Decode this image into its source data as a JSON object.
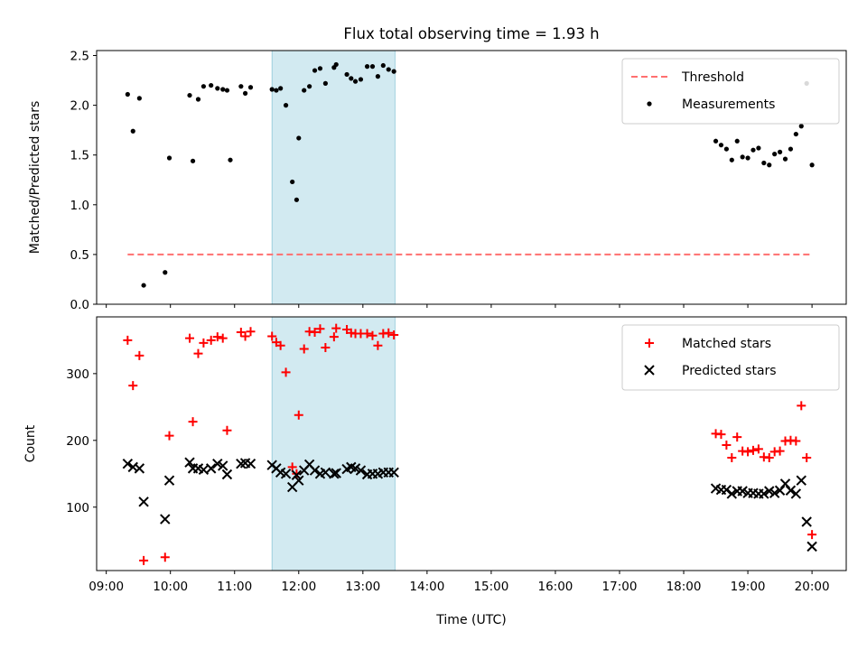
{
  "title": "Flux total observing time = 1.93 h",
  "chart_data": [
    {
      "type": "scatter",
      "panel": "top",
      "title": "Flux total observing time = 1.93 h",
      "ylabel": "Matched/Predicted stars",
      "xlabel": "",
      "xlim": [
        "08:51",
        "20:32"
      ],
      "ylim": [
        0,
        2.55
      ],
      "yticks": [
        "0.0",
        "0.5",
        "1.0",
        "1.5",
        "2.0",
        "2.5"
      ],
      "grid": false,
      "legend_position": "top-right",
      "shaded_span": {
        "start": "11:35",
        "end": "13:30",
        "color": "#add8e6"
      },
      "threshold": {
        "name": "Threshold",
        "value": 0.5,
        "x_start": "09:20",
        "x_end": "20:00",
        "color": "#ff6f6f",
        "style": "dashed"
      },
      "series": [
        {
          "name": "Measurements",
          "color": "#000000",
          "marker": "dot",
          "points": [
            [
              "09:20",
              2.11
            ],
            [
              "09:25",
              1.74
            ],
            [
              "09:31",
              2.07
            ],
            [
              "09:35",
              0.19
            ],
            [
              "09:55",
              0.32
            ],
            [
              "09:59",
              1.47
            ],
            [
              "10:18",
              2.1
            ],
            [
              "10:21",
              1.44
            ],
            [
              "10:26",
              2.06
            ],
            [
              "10:31",
              2.19
            ],
            [
              "10:38",
              2.2
            ],
            [
              "10:44",
              2.17
            ],
            [
              "10:49",
              2.16
            ],
            [
              "10:53",
              2.15
            ],
            [
              "10:56",
              1.45
            ],
            [
              "11:06",
              2.19
            ],
            [
              "11:10",
              2.12
            ],
            [
              "11:15",
              2.18
            ],
            [
              "11:35",
              2.16
            ],
            [
              "11:39",
              2.15
            ],
            [
              "11:43",
              2.17
            ],
            [
              "11:48",
              2.0
            ],
            [
              "11:54",
              1.23
            ],
            [
              "11:58",
              1.05
            ],
            [
              "12:00",
              1.67
            ],
            [
              "12:05",
              2.15
            ],
            [
              "12:10",
              2.19
            ],
            [
              "12:15",
              2.35
            ],
            [
              "12:20",
              2.37
            ],
            [
              "12:25",
              2.22
            ],
            [
              "12:33",
              2.38
            ],
            [
              "12:35",
              2.41
            ],
            [
              "12:45",
              2.31
            ],
            [
              "12:49",
              2.27
            ],
            [
              "12:53",
              2.24
            ],
            [
              "12:58",
              2.26
            ],
            [
              "13:04",
              2.39
            ],
            [
              "13:09",
              2.39
            ],
            [
              "13:14",
              2.29
            ],
            [
              "13:19",
              2.4
            ],
            [
              "13:24",
              2.36
            ],
            [
              "13:29",
              2.34
            ],
            [
              "18:30",
              1.64
            ],
            [
              "18:35",
              1.6
            ],
            [
              "18:40",
              1.56
            ],
            [
              "18:45",
              1.45
            ],
            [
              "18:50",
              1.64
            ],
            [
              "18:55",
              1.48
            ],
            [
              "19:00",
              1.47
            ],
            [
              "19:05",
              1.55
            ],
            [
              "19:10",
              1.57
            ],
            [
              "19:15",
              1.42
            ],
            [
              "19:20",
              1.4
            ],
            [
              "19:25",
              1.51
            ],
            [
              "19:30",
              1.53
            ],
            [
              "19:35",
              1.46
            ],
            [
              "19:40",
              1.56
            ],
            [
              "19:45",
              1.71
            ],
            [
              "19:50",
              1.79
            ],
            [
              "19:55",
              2.22
            ],
            [
              "20:00",
              1.4
            ]
          ]
        }
      ]
    },
    {
      "type": "scatter",
      "panel": "bottom",
      "ylabel": "Count",
      "xlabel": "Time (UTC)",
      "xlim": [
        "08:51",
        "20:32"
      ],
      "ylim": [
        5,
        385
      ],
      "yticks": [
        "100",
        "200",
        "300"
      ],
      "xticks": [
        "09:00",
        "10:00",
        "11:00",
        "12:00",
        "13:00",
        "14:00",
        "15:00",
        "16:00",
        "17:00",
        "18:00",
        "19:00",
        "20:00"
      ],
      "grid": false,
      "legend_position": "top-right",
      "shaded_span": {
        "start": "11:35",
        "end": "13:30",
        "color": "#add8e6"
      },
      "series": [
        {
          "name": "Matched stars",
          "color": "#ff0000",
          "marker": "plus",
          "points": [
            [
              "09:20",
              350
            ],
            [
              "09:25",
              282
            ],
            [
              "09:31",
              327
            ],
            [
              "09:35",
              20
            ],
            [
              "09:55",
              25
            ],
            [
              "09:59",
              207
            ],
            [
              "10:18",
              353
            ],
            [
              "10:21",
              228
            ],
            [
              "10:26",
              330
            ],
            [
              "10:31",
              346
            ],
            [
              "10:38",
              350
            ],
            [
              "10:44",
              355
            ],
            [
              "10:49",
              353
            ],
            [
              "10:53",
              215
            ],
            [
              "11:06",
              362
            ],
            [
              "11:10",
              356
            ],
            [
              "11:15",
              363
            ],
            [
              "11:35",
              356
            ],
            [
              "11:39",
              347
            ],
            [
              "11:43",
              342
            ],
            [
              "11:48",
              302
            ],
            [
              "11:54",
              160
            ],
            [
              "11:58",
              150
            ],
            [
              "12:00",
              238
            ],
            [
              "12:05",
              337
            ],
            [
              "12:10",
              363
            ],
            [
              "12:15",
              362
            ],
            [
              "12:20",
              367
            ],
            [
              "12:25",
              339
            ],
            [
              "12:33",
              355
            ],
            [
              "12:35",
              368
            ],
            [
              "12:45",
              366
            ],
            [
              "12:49",
              361
            ],
            [
              "12:53",
              360
            ],
            [
              "12:58",
              360
            ],
            [
              "13:04",
              360
            ],
            [
              "13:09",
              357
            ],
            [
              "13:14",
              342
            ],
            [
              "13:19",
              360
            ],
            [
              "13:24",
              361
            ],
            [
              "13:29",
              358
            ],
            [
              "18:30",
              210
            ],
            [
              "18:35",
              209
            ],
            [
              "18:40",
              193
            ],
            [
              "18:45",
              174
            ],
            [
              "18:50",
              205
            ],
            [
              "18:55",
              184
            ],
            [
              "19:00",
              183
            ],
            [
              "19:05",
              185
            ],
            [
              "19:10",
              187
            ],
            [
              "19:15",
              175
            ],
            [
              "19:20",
              174
            ],
            [
              "19:25",
              183
            ],
            [
              "19:30",
              184
            ],
            [
              "19:35",
              199
            ],
            [
              "19:40",
              200
            ],
            [
              "19:45",
              199
            ],
            [
              "19:50",
              252
            ],
            [
              "19:55",
              174
            ],
            [
              "20:00",
              59
            ]
          ]
        },
        {
          "name": "Predicted stars",
          "color": "#000000",
          "marker": "cross",
          "points": [
            [
              "09:20",
              165
            ],
            [
              "09:25",
              160
            ],
            [
              "09:31",
              158
            ],
            [
              "09:35",
              108
            ],
            [
              "09:55",
              82
            ],
            [
              "09:59",
              140
            ],
            [
              "10:18",
              167
            ],
            [
              "10:21",
              158
            ],
            [
              "10:26",
              158
            ],
            [
              "10:31",
              156
            ],
            [
              "10:38",
              158
            ],
            [
              "10:44",
              165
            ],
            [
              "10:49",
              162
            ],
            [
              "10:53",
              149
            ],
            [
              "11:06",
              165
            ],
            [
              "11:10",
              166
            ],
            [
              "11:15",
              165
            ],
            [
              "11:35",
              163
            ],
            [
              "11:39",
              158
            ],
            [
              "11:43",
              152
            ],
            [
              "11:48",
              150
            ],
            [
              "11:54",
              130
            ],
            [
              "11:58",
              148
            ],
            [
              "12:00",
              140
            ],
            [
              "12:05",
              155
            ],
            [
              "12:10",
              164
            ],
            [
              "12:15",
              155
            ],
            [
              "12:20",
              150
            ],
            [
              "12:25",
              152
            ],
            [
              "12:33",
              150
            ],
            [
              "12:35",
              151
            ],
            [
              "12:45",
              157
            ],
            [
              "12:49",
              160
            ],
            [
              "12:53",
              158
            ],
            [
              "12:58",
              155
            ],
            [
              "13:04",
              149
            ],
            [
              "13:09",
              150
            ],
            [
              "13:14",
              150
            ],
            [
              "13:19",
              152
            ],
            [
              "13:24",
              152
            ],
            [
              "13:29",
              152
            ],
            [
              "18:30",
              128
            ],
            [
              "18:35",
              126
            ],
            [
              "18:40",
              126
            ],
            [
              "18:45",
              120
            ],
            [
              "18:50",
              124
            ],
            [
              "18:55",
              124
            ],
            [
              "19:00",
              121
            ],
            [
              "19:05",
              121
            ],
            [
              "19:10",
              120
            ],
            [
              "19:15",
              120
            ],
            [
              "19:20",
              124
            ],
            [
              "19:25",
              121
            ],
            [
              "19:30",
              125
            ],
            [
              "19:35",
              135
            ],
            [
              "19:40",
              125
            ],
            [
              "19:45",
              120
            ],
            [
              "19:50",
              140
            ],
            [
              "19:55",
              78
            ],
            [
              "20:00",
              41
            ]
          ]
        }
      ]
    }
  ]
}
